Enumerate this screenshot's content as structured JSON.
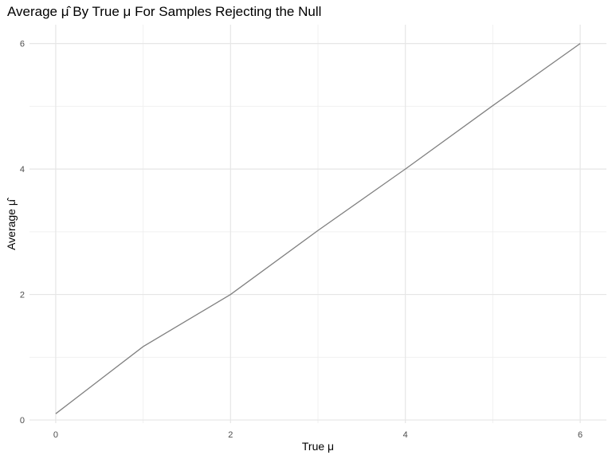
{
  "chart_data": {
    "type": "line",
    "title": "Average μ̂ By True μ For Samples Rejecting the Null",
    "xlabel": "True μ",
    "ylabel": "Average μ̂",
    "x": [
      0,
      1,
      2,
      3,
      4,
      5,
      6
    ],
    "series": [
      {
        "values": [
          0.1,
          1.17,
          2.0,
          3.02,
          4.0,
          5.01,
          6.0
        ]
      }
    ],
    "xlim": [
      -0.3,
      6.3
    ],
    "ylim": [
      -0.05,
      6.3
    ],
    "x_ticks": [
      0,
      2,
      4,
      6
    ],
    "y_ticks": [
      0,
      2,
      4,
      6
    ],
    "grid": true,
    "line_color": "#808080",
    "grid_major_color": "#e6e6e6",
    "grid_minor_color": "#f0f0f0",
    "background": "#ffffff"
  }
}
